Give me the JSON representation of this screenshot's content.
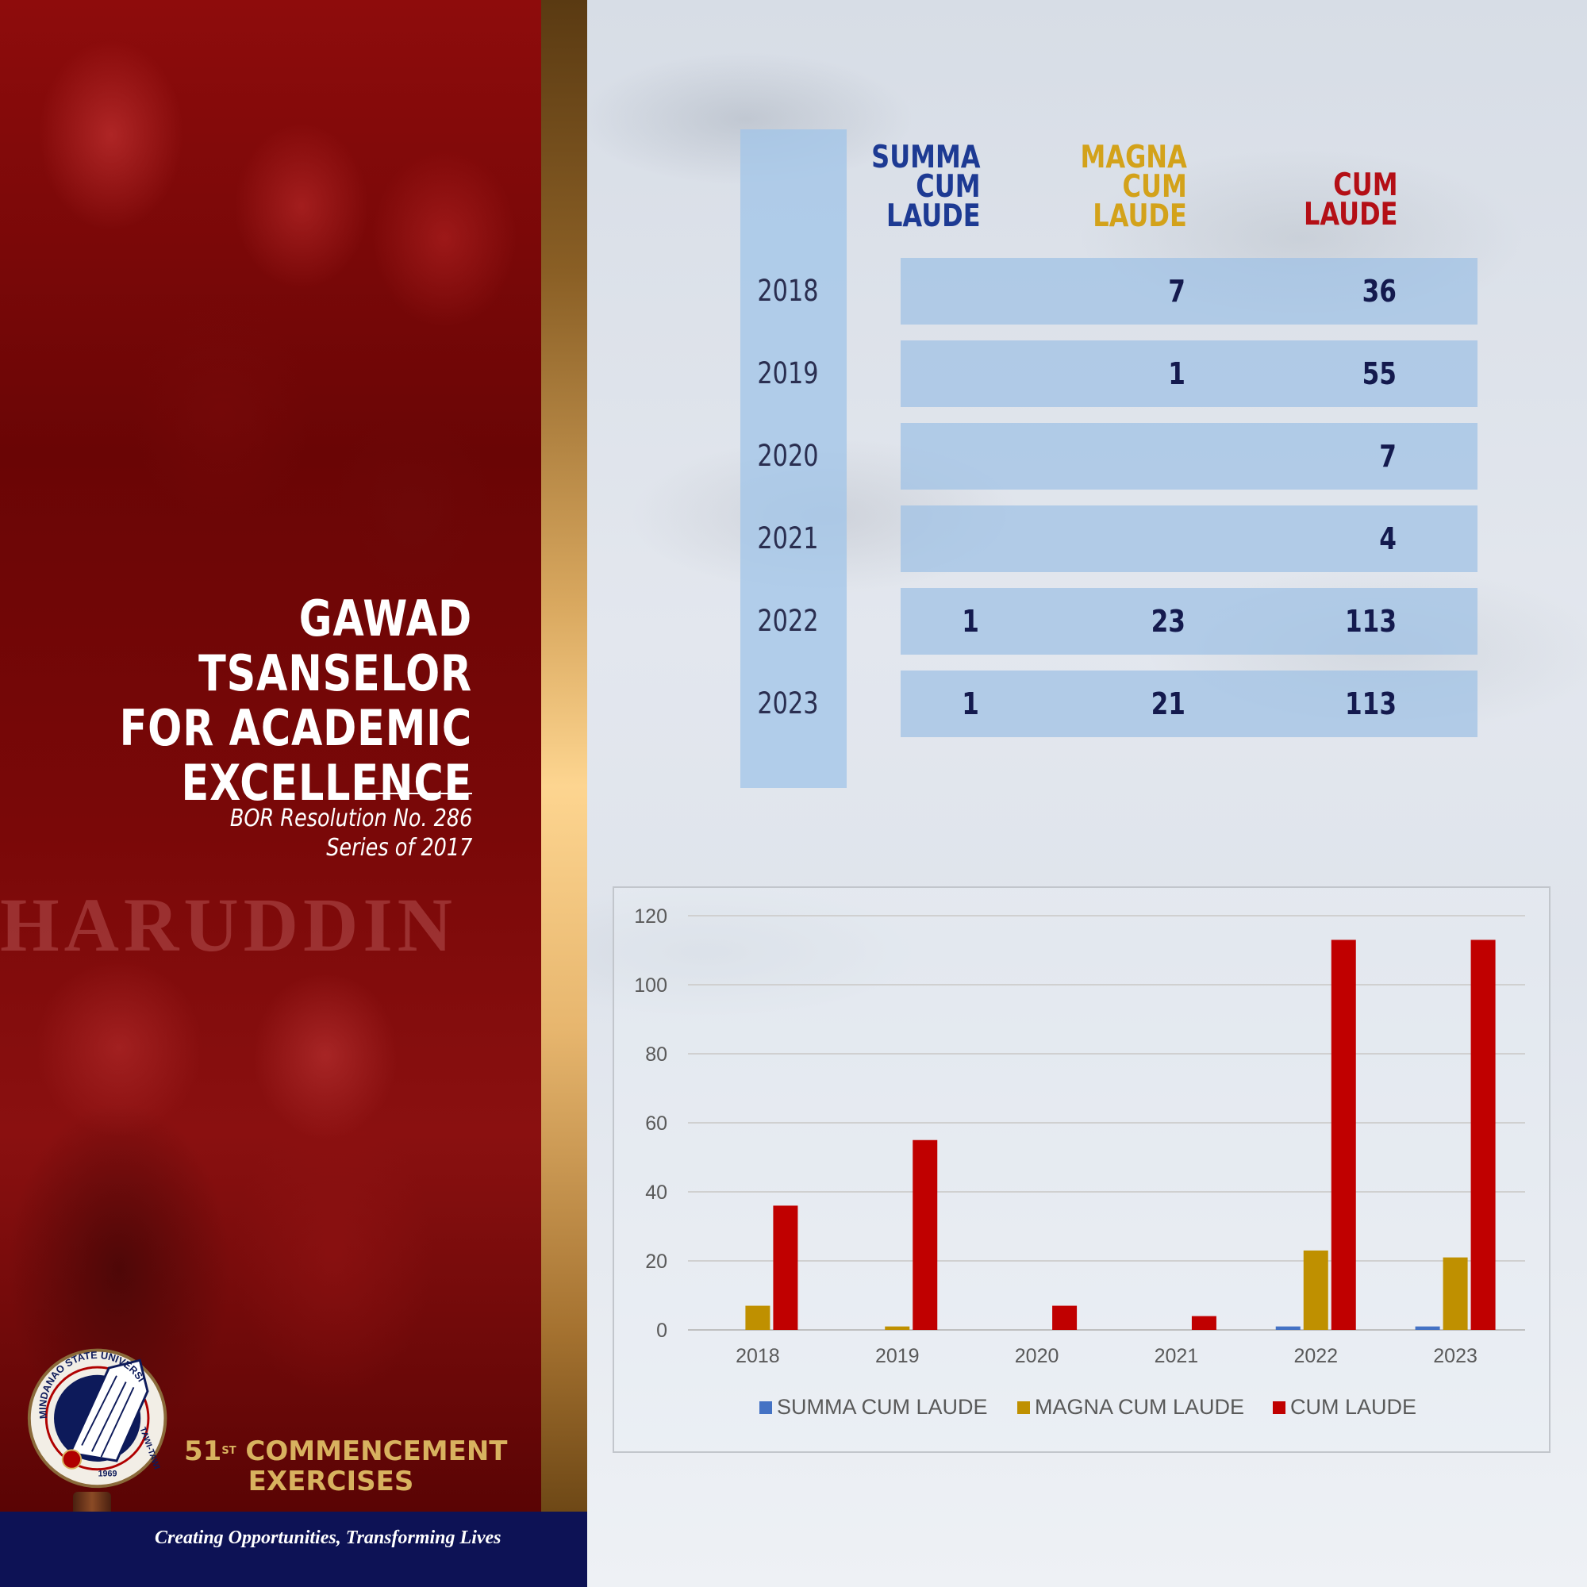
{
  "poster": {
    "title_lines": [
      "GAWAD TSANSELOR",
      "FOR ACADEMIC",
      "EXCELLENCE"
    ],
    "resolution_lines": [
      "BOR Resolution No. 286",
      "Series of 2017"
    ],
    "commencement_number": "51",
    "commencement_suffix": "ST",
    "commencement_word": "COMMENCEMENT",
    "commencement_line2": "EXERCISES",
    "tagline": "Creating Opportunities, Transforming Lives",
    "photo_backdrop_text": "HARUDDIN",
    "logo_text": "MINDANAO STATE UNIVERSITY",
    "logo_campus": "TAWI-TAWI",
    "logo_year": "1969"
  },
  "table": {
    "headers": {
      "summa": [
        "SUMMA",
        "CUM",
        "LAUDE"
      ],
      "magna": [
        "MAGNA",
        "CUM",
        "LAUDE"
      ],
      "cum": [
        "CUM",
        "LAUDE"
      ]
    },
    "rows": [
      {
        "year": "2018",
        "summa": "",
        "magna": "7",
        "cum": "36"
      },
      {
        "year": "2019",
        "summa": "",
        "magna": "1",
        "cum": "55"
      },
      {
        "year": "2020",
        "summa": "",
        "magna": "",
        "cum": "7"
      },
      {
        "year": "2021",
        "summa": "",
        "magna": "",
        "cum": "4"
      },
      {
        "year": "2022",
        "summa": "1",
        "magna": "23",
        "cum": "113"
      },
      {
        "year": "2023",
        "summa": "1",
        "magna": "21",
        "cum": "113"
      }
    ]
  },
  "colors": {
    "summa": "#4472c4",
    "magna": "#bf9000",
    "cum": "#c00000",
    "poster_red": "#7a0808",
    "navy": "#0d1255",
    "gold": "#d8b25f"
  },
  "chart_data": {
    "type": "bar",
    "categories": [
      "2018",
      "2019",
      "2020",
      "2021",
      "2022",
      "2023"
    ],
    "series": [
      {
        "name": "SUMMA CUM LAUDE",
        "values": [
          0,
          0,
          0,
          0,
          1,
          1
        ]
      },
      {
        "name": "MAGNA CUM LAUDE",
        "values": [
          7,
          1,
          0,
          0,
          23,
          21
        ]
      },
      {
        "name": "CUM LAUDE",
        "values": [
          36,
          55,
          7,
          4,
          113,
          113
        ]
      }
    ],
    "yticks": [
      "0",
      "20",
      "40",
      "60",
      "80",
      "100",
      "120"
    ],
    "ylim": [
      0,
      120
    ],
    "grid": true,
    "legend": "bottom"
  }
}
